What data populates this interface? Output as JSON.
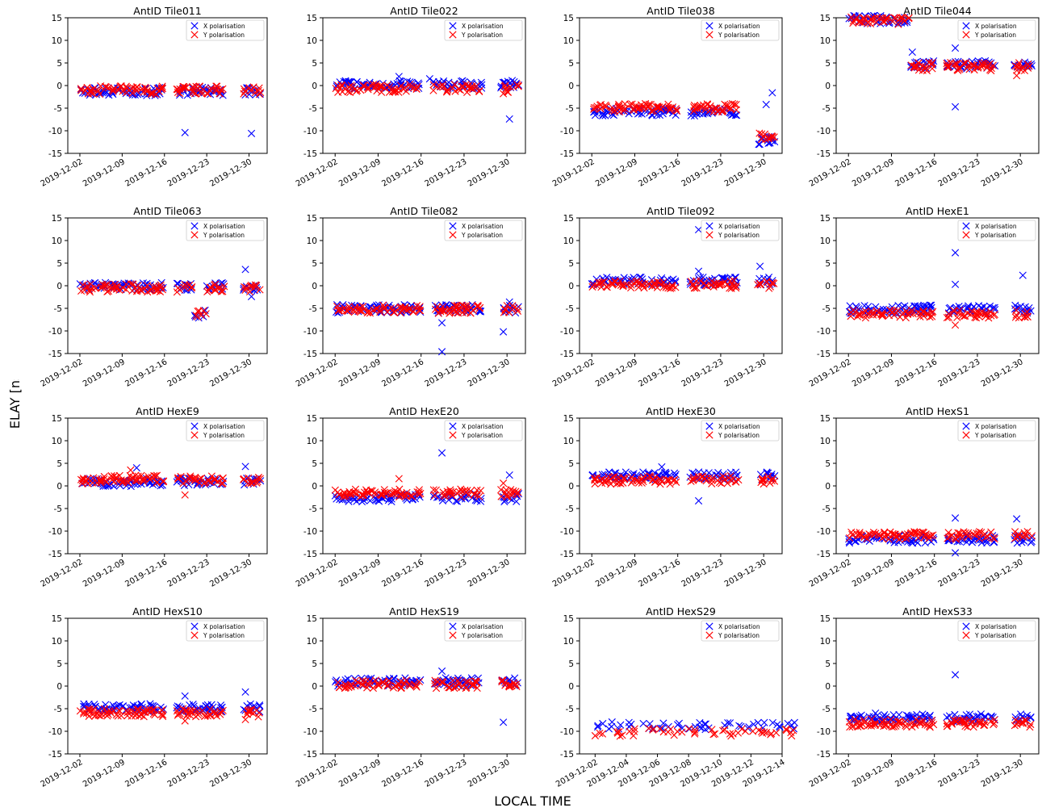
{
  "figure": {
    "ylabel": "DELAY [ns]",
    "xlabel": "LOCAL TIME",
    "legend": {
      "x_label": "X polarisation",
      "y_label": "Y polarisation",
      "placement": "top-right"
    },
    "colors": {
      "x_pol": "#0000ff",
      "y_pol": "#ff0000"
    }
  },
  "chart_data": [
    {
      "type": "scatter",
      "title": "AntID Tile011",
      "ylim": [
        -15,
        15
      ],
      "xlim": [
        "2019-11-30",
        "2020-01-02"
      ],
      "yticks": [
        15,
        10,
        5,
        0,
        -5,
        -10,
        -15
      ],
      "xticks": [
        "2019-12-02",
        "2019-12-09",
        "2019-12-16",
        "2019-12-23",
        "2019-12-30"
      ],
      "series": [
        {
          "name": "X polarisation",
          "baseline": -1.3,
          "outliers": [
            [
              "2019-12-19",
              -10.4
            ],
            [
              "2019-12-30",
              -10.6
            ]
          ]
        },
        {
          "name": "Y polarisation",
          "baseline": -1.0,
          "outliers": []
        }
      ]
    },
    {
      "type": "scatter",
      "title": "AntID Tile022",
      "ylim": [
        -15,
        15
      ],
      "xlim": [
        "2019-11-30",
        "2020-01-02"
      ],
      "yticks": [
        15,
        10,
        5,
        0,
        -5,
        -10,
        -15
      ],
      "xticks": [
        "2019-12-02",
        "2019-12-09",
        "2019-12-16",
        "2019-12-23",
        "2019-12-30"
      ],
      "series": [
        {
          "name": "X polarisation",
          "baseline": 0.2,
          "outliers": [
            [
              "2019-12-30",
              -7.4
            ],
            [
              "2019-12-12",
              2.0
            ],
            [
              "2019-12-17",
              1.5
            ]
          ]
        },
        {
          "name": "Y polarisation",
          "baseline": -0.6,
          "outliers": [
            [
              "2019-12-29",
              -1.8
            ]
          ]
        }
      ]
    },
    {
      "type": "scatter",
      "title": "AntID Tile038",
      "ylim": [
        -15,
        15
      ],
      "xlim": [
        "2019-11-30",
        "2020-01-02"
      ],
      "yticks": [
        15,
        10,
        5,
        0,
        -5,
        -10,
        -15
      ],
      "xticks": [
        "2019-12-02",
        "2019-12-09",
        "2019-12-16",
        "2019-12-23",
        "2019-12-30"
      ],
      "series": [
        {
          "name": "X polarisation",
          "baseline": -5.8,
          "late_shift": -12.2,
          "outliers": [
            [
              "2019-12-30",
              -4.2
            ],
            [
              "2019-12-31",
              -1.6
            ]
          ]
        },
        {
          "name": "Y polarisation",
          "baseline": -4.9,
          "late_shift": -11.0,
          "outliers": []
        }
      ]
    },
    {
      "type": "scatter",
      "title": "AntID Tile044",
      "ylim": [
        -15,
        15
      ],
      "xlim": [
        "2019-11-30",
        "2020-01-02"
      ],
      "yticks": [
        15,
        10,
        5,
        0,
        -5,
        -10,
        -15
      ],
      "xticks": [
        "2019-12-02",
        "2019-12-09",
        "2019-12-16",
        "2019-12-23",
        "2019-12-30"
      ],
      "series": [
        {
          "name": "X polarisation",
          "baseline": 4.6,
          "early_level": 14.6,
          "outliers": [
            [
              "2019-12-19",
              -4.7
            ],
            [
              "2019-12-19",
              8.3
            ],
            [
              "2019-12-12",
              7.4
            ]
          ]
        },
        {
          "name": "Y polarisation",
          "baseline": 4.2,
          "early_level": 14.3,
          "outliers": [
            [
              "2019-12-29",
              2.2
            ]
          ]
        }
      ]
    },
    {
      "type": "scatter",
      "title": "AntID Tile063",
      "ylim": [
        -15,
        15
      ],
      "xlim": [
        "2019-11-30",
        "2020-01-02"
      ],
      "yticks": [
        15,
        10,
        5,
        0,
        -5,
        -10,
        -15
      ],
      "xticks": [
        "2019-12-02",
        "2019-12-09",
        "2019-12-16",
        "2019-12-23",
        "2019-12-30"
      ],
      "series": [
        {
          "name": "X polarisation",
          "baseline": -0.2,
          "dip": [
            "2019-12-21",
            "2019-12-22",
            -6.3
          ],
          "outliers": [
            [
              "2019-12-29",
              3.6
            ],
            [
              "2019-12-30",
              -2.4
            ]
          ]
        },
        {
          "name": "Y polarisation",
          "baseline": -0.5,
          "dip": [
            "2019-12-21",
            "2019-12-22",
            -6.0
          ],
          "outliers": []
        }
      ]
    },
    {
      "type": "scatter",
      "title": "AntID Tile082",
      "ylim": [
        -15,
        15
      ],
      "xlim": [
        "2019-11-30",
        "2020-01-02"
      ],
      "yticks": [
        15,
        10,
        5,
        0,
        -5,
        -10,
        -15
      ],
      "xticks": [
        "2019-12-02",
        "2019-12-09",
        "2019-12-16",
        "2019-12-23",
        "2019-12-30"
      ],
      "series": [
        {
          "name": "X polarisation",
          "baseline": -5.1,
          "outliers": [
            [
              "2019-12-19",
              -8.2
            ],
            [
              "2019-12-19",
              -14.6
            ],
            [
              "2019-12-29",
              -10.2
            ],
            [
              "2019-12-30",
              -3.6
            ]
          ]
        },
        {
          "name": "Y polarisation",
          "baseline": -5.2,
          "outliers": []
        }
      ]
    },
    {
      "type": "scatter",
      "title": "AntID Tile092",
      "ylim": [
        -15,
        15
      ],
      "xlim": [
        "2019-11-30",
        "2020-01-02"
      ],
      "yticks": [
        15,
        10,
        5,
        0,
        -5,
        -10,
        -15
      ],
      "xticks": [
        "2019-12-02",
        "2019-12-09",
        "2019-12-16",
        "2019-12-23",
        "2019-12-30"
      ],
      "series": [
        {
          "name": "X polarisation",
          "baseline": 1.0,
          "outliers": [
            [
              "2019-12-19",
              12.4
            ],
            [
              "2019-12-19",
              3.2
            ],
            [
              "2019-12-29",
              4.3
            ]
          ]
        },
        {
          "name": "Y polarisation",
          "baseline": 0.3,
          "outliers": []
        }
      ]
    },
    {
      "type": "scatter",
      "title": "AntID HexE1",
      "ylim": [
        -15,
        15
      ],
      "xlim": [
        "2019-11-30",
        "2020-01-02"
      ],
      "yticks": [
        15,
        10,
        5,
        0,
        -5,
        -10,
        -15
      ],
      "xticks": [
        "2019-12-02",
        "2019-12-09",
        "2019-12-16",
        "2019-12-23",
        "2019-12-30"
      ],
      "series": [
        {
          "name": "X polarisation",
          "baseline": -5.2,
          "outliers": [
            [
              "2019-12-19",
              7.3
            ],
            [
              "2019-12-19",
              0.3
            ],
            [
              "2019-12-30",
              2.3
            ]
          ]
        },
        {
          "name": "Y polarisation",
          "baseline": -6.3,
          "outliers": [
            [
              "2019-12-19",
              -8.7
            ]
          ]
        }
      ]
    },
    {
      "type": "scatter",
      "title": "AntID HexE9",
      "ylim": [
        -15,
        15
      ],
      "xlim": [
        "2019-11-30",
        "2020-01-02"
      ],
      "yticks": [
        15,
        10,
        5,
        0,
        -5,
        -10,
        -15
      ],
      "xticks": [
        "2019-12-02",
        "2019-12-09",
        "2019-12-16",
        "2019-12-23",
        "2019-12-30"
      ],
      "series": [
        {
          "name": "X polarisation",
          "baseline": 0.8,
          "outliers": [
            [
              "2019-12-29",
              4.3
            ],
            [
              "2019-12-11",
              4.0
            ]
          ]
        },
        {
          "name": "Y polarisation",
          "baseline": 1.4,
          "outliers": [
            [
              "2019-12-19",
              -2.0
            ],
            [
              "2019-12-10",
              3.5
            ]
          ]
        }
      ]
    },
    {
      "type": "scatter",
      "title": "AntID HexE20",
      "ylim": [
        -15,
        15
      ],
      "xlim": [
        "2019-11-30",
        "2020-01-02"
      ],
      "yticks": [
        15,
        10,
        5,
        0,
        -5,
        -10,
        -15
      ],
      "xticks": [
        "2019-12-02",
        "2019-12-09",
        "2019-12-16",
        "2019-12-23",
        "2019-12-30"
      ],
      "series": [
        {
          "name": "X polarisation",
          "baseline": -2.6,
          "outliers": [
            [
              "2019-12-19",
              7.3
            ],
            [
              "2019-12-30",
              2.4
            ]
          ]
        },
        {
          "name": "Y polarisation",
          "baseline": -1.6,
          "outliers": [
            [
              "2019-12-12",
              1.6
            ],
            [
              "2019-12-29",
              0.6
            ]
          ]
        }
      ]
    },
    {
      "type": "scatter",
      "title": "AntID HexE30",
      "ylim": [
        -15,
        15
      ],
      "xlim": [
        "2019-11-30",
        "2020-01-02"
      ],
      "yticks": [
        15,
        10,
        5,
        0,
        -5,
        -10,
        -15
      ],
      "xticks": [
        "2019-12-02",
        "2019-12-09",
        "2019-12-16",
        "2019-12-23",
        "2019-12-30"
      ],
      "series": [
        {
          "name": "X polarisation",
          "baseline": 2.2,
          "outliers": [
            [
              "2019-12-19",
              -3.3
            ],
            [
              "2019-12-13",
              4.2
            ]
          ]
        },
        {
          "name": "Y polarisation",
          "baseline": 1.3,
          "outliers": []
        }
      ]
    },
    {
      "type": "scatter",
      "title": "AntID HexS1",
      "ylim": [
        -15,
        15
      ],
      "xlim": [
        "2019-11-30",
        "2020-01-02"
      ],
      "yticks": [
        15,
        10,
        5,
        0,
        -5,
        -10,
        -15
      ],
      "xticks": [
        "2019-12-02",
        "2019-12-09",
        "2019-12-16",
        "2019-12-23",
        "2019-12-30"
      ],
      "series": [
        {
          "name": "X polarisation",
          "baseline": -11.8,
          "outliers": [
            [
              "2019-12-19",
              -7.1
            ],
            [
              "2019-12-19",
              -14.8
            ],
            [
              "2019-12-29",
              -7.3
            ]
          ]
        },
        {
          "name": "Y polarisation",
          "baseline": -11.0,
          "outliers": []
        }
      ]
    },
    {
      "type": "scatter",
      "title": "AntID HexS10",
      "ylim": [
        -15,
        15
      ],
      "xlim": [
        "2019-11-30",
        "2020-01-02"
      ],
      "yticks": [
        15,
        10,
        5,
        0,
        -5,
        -10,
        -15
      ],
      "xticks": [
        "2019-12-02",
        "2019-12-09",
        "2019-12-16",
        "2019-12-23",
        "2019-12-30"
      ],
      "series": [
        {
          "name": "X polarisation",
          "baseline": -4.8,
          "outliers": [
            [
              "2019-12-29",
              -1.3
            ],
            [
              "2019-12-19",
              -2.2
            ]
          ]
        },
        {
          "name": "Y polarisation",
          "baseline": -5.9,
          "outliers": [
            [
              "2019-12-19",
              -7.7
            ],
            [
              "2019-12-29",
              -7.4
            ]
          ]
        }
      ]
    },
    {
      "type": "scatter",
      "title": "AntID HexS19",
      "ylim": [
        -15,
        15
      ],
      "xlim": [
        "2019-11-30",
        "2020-01-02"
      ],
      "yticks": [
        15,
        10,
        5,
        0,
        -5,
        -10,
        -15
      ],
      "xticks": [
        "2019-12-02",
        "2019-12-09",
        "2019-12-16",
        "2019-12-23",
        "2019-12-30"
      ],
      "series": [
        {
          "name": "X polarisation",
          "baseline": 0.9,
          "outliers": [
            [
              "2019-12-29",
              -8.0
            ],
            [
              "2019-12-19",
              3.3
            ]
          ]
        },
        {
          "name": "Y polarisation",
          "baseline": 0.4,
          "outliers": []
        }
      ]
    },
    {
      "type": "scatter",
      "title": "AntID HexS29",
      "ylim": [
        -15,
        15
      ],
      "xlim": [
        "2019-12-01",
        "2019-12-14"
      ],
      "yticks": [
        15,
        10,
        5,
        0,
        -5,
        -10,
        -15
      ],
      "xticks": [
        "2019-12-02",
        "2019-12-04",
        "2019-12-06",
        "2019-12-08",
        "2019-12-10",
        "2019-12-12",
        "2019-12-14"
      ],
      "series": [
        {
          "name": "X polarisation",
          "baseline": -8.7,
          "outliers": []
        },
        {
          "name": "Y polarisation",
          "baseline": -10.2,
          "outliers": []
        }
      ]
    },
    {
      "type": "scatter",
      "title": "AntID HexS33",
      "ylim": [
        -15,
        15
      ],
      "xlim": [
        "2019-11-30",
        "2020-01-02"
      ],
      "yticks": [
        15,
        10,
        5,
        0,
        -5,
        -10,
        -15
      ],
      "xticks": [
        "2019-12-02",
        "2019-12-09",
        "2019-12-16",
        "2019-12-23",
        "2019-12-30"
      ],
      "series": [
        {
          "name": "X polarisation",
          "baseline": -7.1,
          "outliers": [
            [
              "2019-12-19",
              2.5
            ],
            [
              "2019-12-06",
              -6.0
            ]
          ]
        },
        {
          "name": "Y polarisation",
          "baseline": -8.2,
          "outliers": []
        }
      ]
    }
  ]
}
